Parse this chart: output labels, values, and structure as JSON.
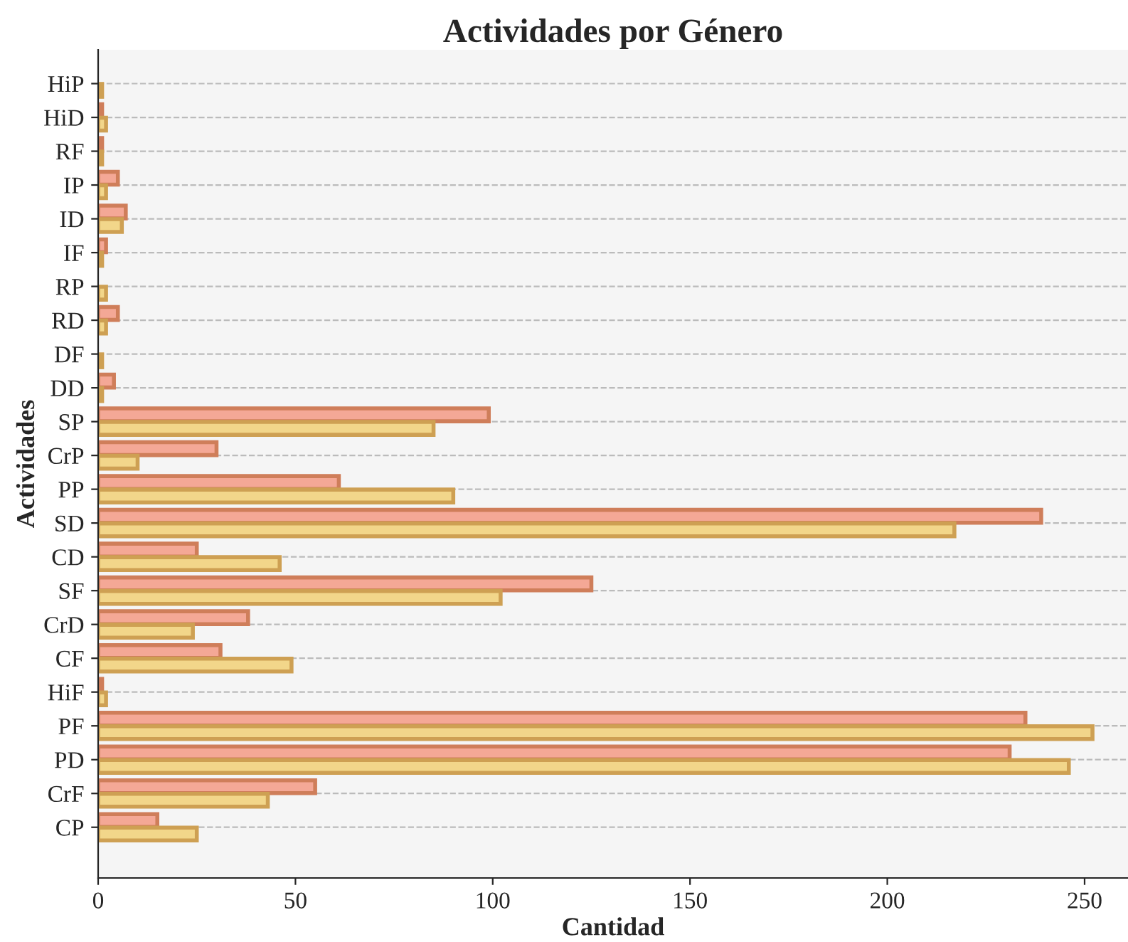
{
  "chart_data": {
    "type": "bar",
    "orientation": "horizontal",
    "title": "Actividades por Género",
    "xlabel": "Cantidad",
    "ylabel": "Actividades",
    "categories": [
      "HiP",
      "HiD",
      "RF",
      "IP",
      "ID",
      "IF",
      "RP",
      "RD",
      "DF",
      "DD",
      "SP",
      "CrP",
      "PP",
      "SD",
      "CD",
      "SF",
      "CrD",
      "CF",
      "HiF",
      "PF",
      "PD",
      "CrF",
      "CP"
    ],
    "series": [
      {
        "color": "#f4a896",
        "values": [
          0,
          1,
          1,
          5,
          7,
          2,
          0,
          5,
          0,
          4,
          99,
          30,
          61,
          239,
          25,
          125,
          38,
          31,
          1,
          235,
          231,
          55,
          15
        ]
      },
      {
        "color": "#f2d68a",
        "values": [
          1,
          2,
          1,
          2,
          6,
          1,
          2,
          2,
          1,
          1,
          85,
          10,
          90,
          217,
          46,
          102,
          24,
          49,
          2,
          252,
          246,
          43,
          25
        ]
      }
    ],
    "xlim": [
      0,
      261
    ],
    "xticks": [
      0,
      50,
      100,
      150,
      200,
      250
    ],
    "grid": "y"
  }
}
